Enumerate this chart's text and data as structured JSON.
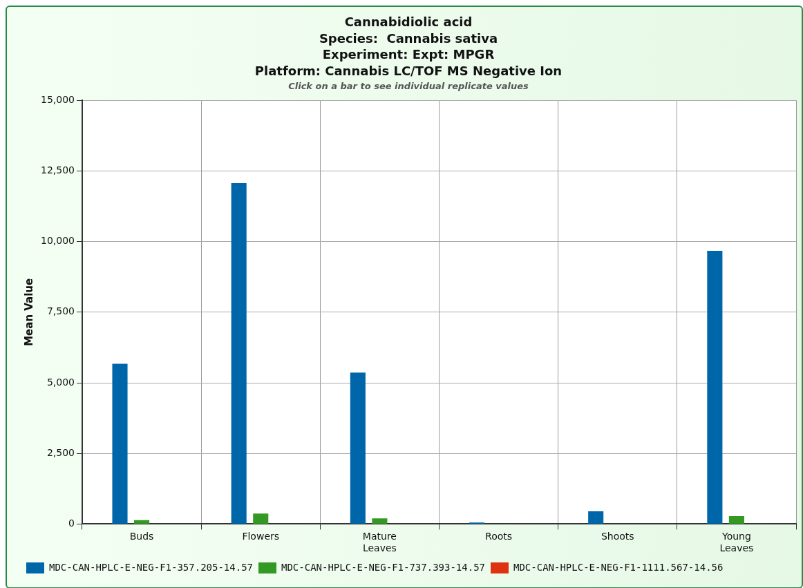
{
  "chart_data": {
    "type": "bar",
    "title": "Cannabidiolic acid\nSpecies:  Cannabis sativa\nExperiment: Expt: MPGR\nPlatform: Cannabis LC/TOF MS Negative Ion",
    "subtitle": "Click on a bar to see individual replicate values",
    "ylabel": "Mean Value",
    "categories": [
      "Buds",
      "Flowers",
      "Mature\nLeaves",
      "Roots",
      "Shoots",
      "Young\nLeaves"
    ],
    "series": [
      {
        "name": "MDC-CAN-HPLC-E-NEG-F1-357.205-14.57",
        "color": "#0066aa",
        "values": [
          5670,
          12070,
          5360,
          50,
          450,
          9670
        ]
      },
      {
        "name": "MDC-CAN-HPLC-E-NEG-F1-737.393-14.57",
        "color": "#339922",
        "values": [
          140,
          370,
          200,
          0,
          0,
          280
        ]
      },
      {
        "name": "MDC-CAN-HPLC-E-NEG-F1-1111.567-14.56",
        "color": "#dd3311",
        "values": [
          0,
          0,
          0,
          0,
          0,
          0
        ]
      }
    ],
    "ylim": [
      0,
      15000
    ],
    "yticks": [
      {
        "value": 0,
        "label": "0"
      },
      {
        "value": 2500,
        "label": "2,500"
      },
      {
        "value": 5000,
        "label": "5,000"
      },
      {
        "value": 7500,
        "label": "7,500"
      },
      {
        "value": 10000,
        "label": "10,000"
      },
      {
        "value": 12500,
        "label": "12,500"
      },
      {
        "value": 15000,
        "label": "15,000"
      }
    ],
    "grid": true,
    "legend": "bottom"
  }
}
